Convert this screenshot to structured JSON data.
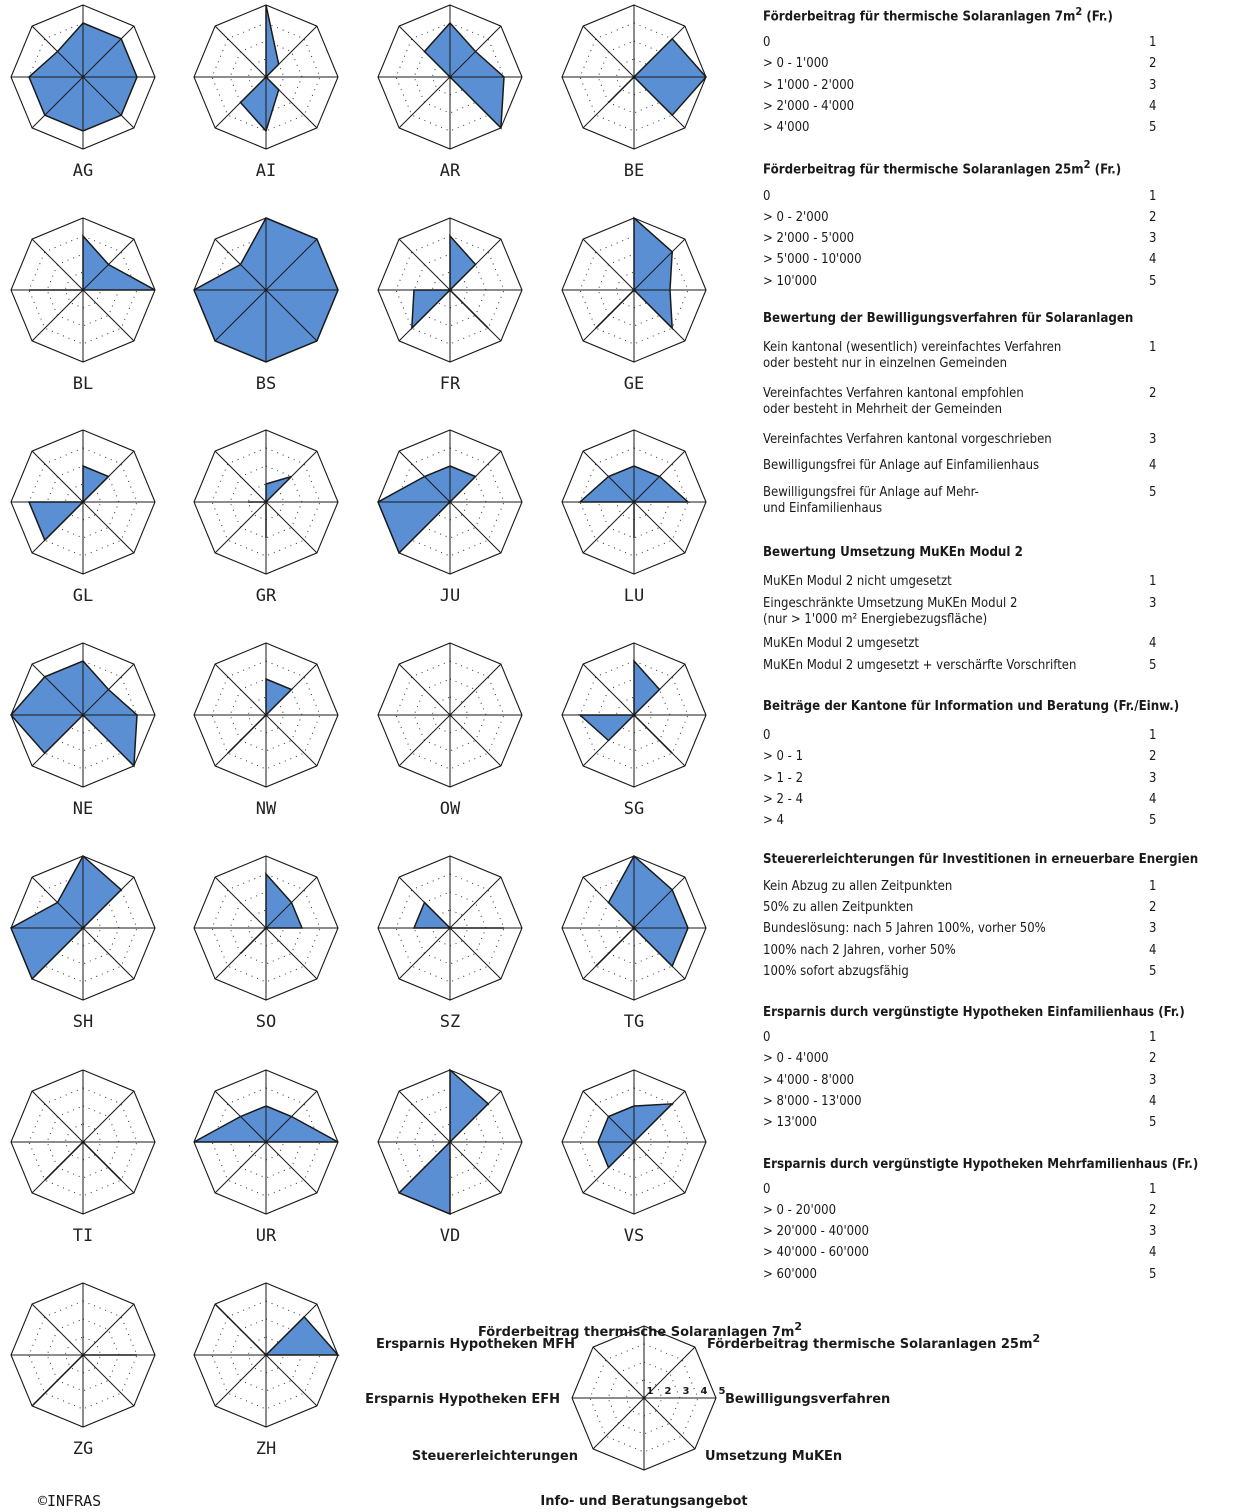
{
  "chart_data": {
    "type": "radar",
    "scale": [
      1,
      5
    ],
    "axes_order_clockwise_from_top": [
      "Förderbeitrag thermische Solaranlagen 7m²",
      "Förderbeitrag thermische Solaranlagen 25m²",
      "Bewilligungsverfahren",
      "Umsetzung MuKEn",
      "Info- und Beratungsangebot",
      "Steuererleichterungen",
      "Ersparnis Hypotheken EFH",
      "Ersparnis Hypotheken MFH"
    ],
    "cantons": [
      {
        "name": "AG",
        "values": [
          4,
          4,
          4,
          4,
          4,
          4,
          4,
          3
        ]
      },
      {
        "name": "AI",
        "values": [
          5,
          2,
          1,
          2,
          4,
          3,
          1,
          1
        ]
      },
      {
        "name": "AR",
        "values": [
          4,
          3,
          4,
          5,
          1,
          1,
          1,
          3
        ]
      },
      {
        "name": "BE",
        "values": [
          1,
          4,
          5,
          4,
          1,
          3,
          1,
          1
        ]
      },
      {
        "name": "BL",
        "values": [
          4,
          3,
          5,
          1,
          1,
          1,
          4,
          1
        ]
      },
      {
        "name": "BS",
        "values": [
          5,
          5,
          5,
          5,
          5,
          5,
          5,
          3
        ]
      },
      {
        "name": "FR",
        "values": [
          4,
          3,
          1,
          4,
          1,
          4,
          3,
          1
        ]
      },
      {
        "name": "GE",
        "values": [
          5,
          4,
          3,
          4,
          1,
          4,
          1,
          1
        ]
      },
      {
        "name": "GL",
        "values": [
          3,
          3,
          1,
          1,
          1,
          4,
          4,
          1
        ]
      },
      {
        "name": "GR",
        "values": [
          2,
          3,
          1,
          1,
          3,
          1,
          2,
          1
        ]
      },
      {
        "name": "JU",
        "values": [
          3,
          3,
          1,
          1,
          1,
          5,
          5,
          3
        ]
      },
      {
        "name": "LU",
        "values": [
          3,
          3,
          4,
          1,
          3,
          1,
          4,
          3
        ]
      },
      {
        "name": "NE",
        "values": [
          4,
          3,
          4,
          5,
          1,
          4,
          5,
          4
        ]
      },
      {
        "name": "NW",
        "values": [
          3,
          3,
          1,
          1,
          1,
          4,
          1,
          1
        ]
      },
      {
        "name": "OW",
        "values": [
          1,
          1,
          1,
          1,
          1,
          1,
          1,
          1
        ]
      },
      {
        "name": "SG",
        "values": [
          4,
          3,
          1,
          4,
          1,
          3,
          4,
          1
        ]
      },
      {
        "name": "SH",
        "values": [
          5,
          4,
          1,
          1,
          1,
          5,
          5,
          3
        ]
      },
      {
        "name": "SO",
        "values": [
          4,
          3,
          3,
          1,
          1,
          3,
          1,
          1
        ]
      },
      {
        "name": "SZ",
        "values": [
          1,
          1,
          4,
          1,
          1,
          1,
          3,
          3
        ]
      },
      {
        "name": "TG",
        "values": [
          5,
          4,
          4,
          4,
          1,
          4,
          1,
          3
        ]
      },
      {
        "name": "TI",
        "values": [
          1,
          1,
          1,
          4,
          1,
          4,
          1,
          1
        ]
      },
      {
        "name": "UR",
        "values": [
          3,
          3,
          5,
          1,
          1,
          1,
          5,
          3
        ]
      },
      {
        "name": "VD",
        "values": [
          5,
          4,
          1,
          1,
          5,
          5,
          1,
          1
        ]
      },
      {
        "name": "VS",
        "values": [
          3,
          4,
          1,
          1,
          1,
          3,
          3,
          3
        ]
      },
      {
        "name": "ZG",
        "values": [
          1,
          1,
          4,
          1,
          1,
          5,
          1,
          1
        ]
      },
      {
        "name": "ZH",
        "values": [
          1,
          4,
          5,
          1,
          1,
          1,
          1,
          5
        ]
      }
    ],
    "example_key": {
      "values": [
        1,
        1,
        1,
        1,
        1,
        1,
        1,
        1
      ],
      "tick_labels": [
        "1",
        "2",
        "3",
        "4",
        "5"
      ],
      "axis_labels": [
        {
          "text": "Förderbeitrag thermische Solaranlagen 7m",
          "sup": "2"
        },
        {
          "text": "Förderbeitrag thermische Solaranlagen 25m",
          "sup": "2"
        },
        {
          "text": "Bewilligungsverfahren",
          "sup": ""
        },
        {
          "text": "Umsetzung MuKEn",
          "sup": ""
        },
        {
          "text": "Info- und Beratungsangebot",
          "sup": ""
        },
        {
          "text": "Steuererleichterungen",
          "sup": ""
        },
        {
          "text": "Ersparnis Hypotheken EFH",
          "sup": ""
        },
        {
          "text": "Ersparnis Hypotheken MFH",
          "sup": ""
        }
      ]
    }
  },
  "legend": [
    {
      "title": "Förderbeitrag für thermische Solaranlagen 7m",
      "sup": "2",
      "suffix": " (Fr.)",
      "rows": [
        {
          "label": "0",
          "value": "1"
        },
        {
          "label": "> 0 - 1'000",
          "value": "2"
        },
        {
          "label": "> 1'000 - 2'000",
          "value": "3"
        },
        {
          "label": "> 2'000 - 4'000",
          "value": "4"
        },
        {
          "label": "> 4'000",
          "value": "5"
        }
      ]
    },
    {
      "title": "Förderbeitrag für thermische Solaranlagen 25m",
      "sup": "2",
      "suffix": " (Fr.)",
      "rows": [
        {
          "label": "0",
          "value": "1"
        },
        {
          "label": "> 0 - 2'000",
          "value": "2"
        },
        {
          "label": "> 2'000 - 5'000",
          "value": "3"
        },
        {
          "label": "> 5'000 - 10'000",
          "value": "4"
        },
        {
          "label": "> 10'000",
          "value": "5"
        }
      ]
    },
    {
      "title": "Bewertung der Bewilligungsverfahren für Solaranlagen",
      "sup": "",
      "suffix": "",
      "rows": [
        {
          "label": "Kein kantonal (wesentlich) vereinfachtes Verfahren\noder besteht nur in einzelnen Gemeinden",
          "value": "1"
        },
        {
          "label": "Vereinfachtes Verfahren kantonal empfohlen\noder besteht in Mehrheit der Gemeinden",
          "value": "2"
        },
        {
          "label": "Vereinfachtes Verfahren kantonal vorgeschrieben",
          "value": "3"
        },
        {
          "label": "Bewilligungsfrei für Anlage auf Einfamilienhaus",
          "value": "4"
        },
        {
          "label": "Bewilligungsfrei für Anlage auf Mehr-\nund Einfamilienhaus",
          "value": "5"
        }
      ]
    },
    {
      "title": "Bewertung Umsetzung MuKEn Modul 2",
      "sup": "",
      "suffix": "",
      "rows": [
        {
          "label": "MuKEn Modul 2 nicht umgesetzt",
          "value": "1"
        },
        {
          "label": "Eingeschränkte Umsetzung MuKEn Modul 2\n(nur > 1'000 m² Energiebezugsfläche)",
          "value": "3"
        },
        {
          "label": "MuKEn Modul 2 umgesetzt",
          "value": "4"
        },
        {
          "label": "MuKEn Modul 2 umgesetzt + verschärfte Vorschriften",
          "value": "5"
        }
      ]
    },
    {
      "title": "Beiträge der Kantone für Information und Beratung (Fr./Einw.)",
      "sup": "",
      "suffix": "",
      "rows": [
        {
          "label": "0",
          "value": "1"
        },
        {
          "label": "> 0 - 1",
          "value": "2"
        },
        {
          "label": "> 1 - 2",
          "value": "3"
        },
        {
          "label": "> 2 - 4",
          "value": "4"
        },
        {
          "label": "> 4",
          "value": "5"
        }
      ]
    },
    {
      "title": "Steuererleichterungen für Investitionen in erneuerbare Energien",
      "sup": "",
      "suffix": "",
      "rows": [
        {
          "label": "Kein Abzug zu allen Zeitpunkten",
          "value": "1"
        },
        {
          "label": "50% zu allen Zeitpunkten",
          "value": "2"
        },
        {
          "label": "Bundeslösung: nach 5 Jahren 100%, vorher 50%",
          "value": "3"
        },
        {
          "label": "100% nach 2 Jahren, vorher 50%",
          "value": "4"
        },
        {
          "label": "100% sofort abzugsfähig",
          "value": "5"
        }
      ]
    },
    {
      "title": "Ersparnis durch vergünstigte Hypotheken Einfamilienhaus (Fr.)",
      "sup": "",
      "suffix": "",
      "rows": [
        {
          "label": "0",
          "value": "1"
        },
        {
          "label": "> 0 - 4'000",
          "value": "2"
        },
        {
          "label": "> 4'000 - 8'000",
          "value": "3"
        },
        {
          "label": "> 8'000 - 13'000",
          "value": "4"
        },
        {
          "label": "> 13'000",
          "value": "5"
        }
      ]
    },
    {
      "title": "Ersparnis  durch vergünstigte Hypotheken Mehrfamilienhaus (Fr.)",
      "sup": "",
      "suffix": "",
      "rows": [
        {
          "label": "0",
          "value": "1"
        },
        {
          "label": "> 0 - 20'000",
          "value": "2"
        },
        {
          "label": "> 20'000 - 40'000",
          "value": "3"
        },
        {
          "label": "> 40'000 - 60'000",
          "value": "4"
        },
        {
          "label": "> 60'000",
          "value": "5"
        }
      ]
    }
  ],
  "copyright": "©INFRAS",
  "colors": {
    "fill": "#5b8fd3",
    "stroke": "#1a1a1a",
    "grid": "#1a1a1a"
  }
}
